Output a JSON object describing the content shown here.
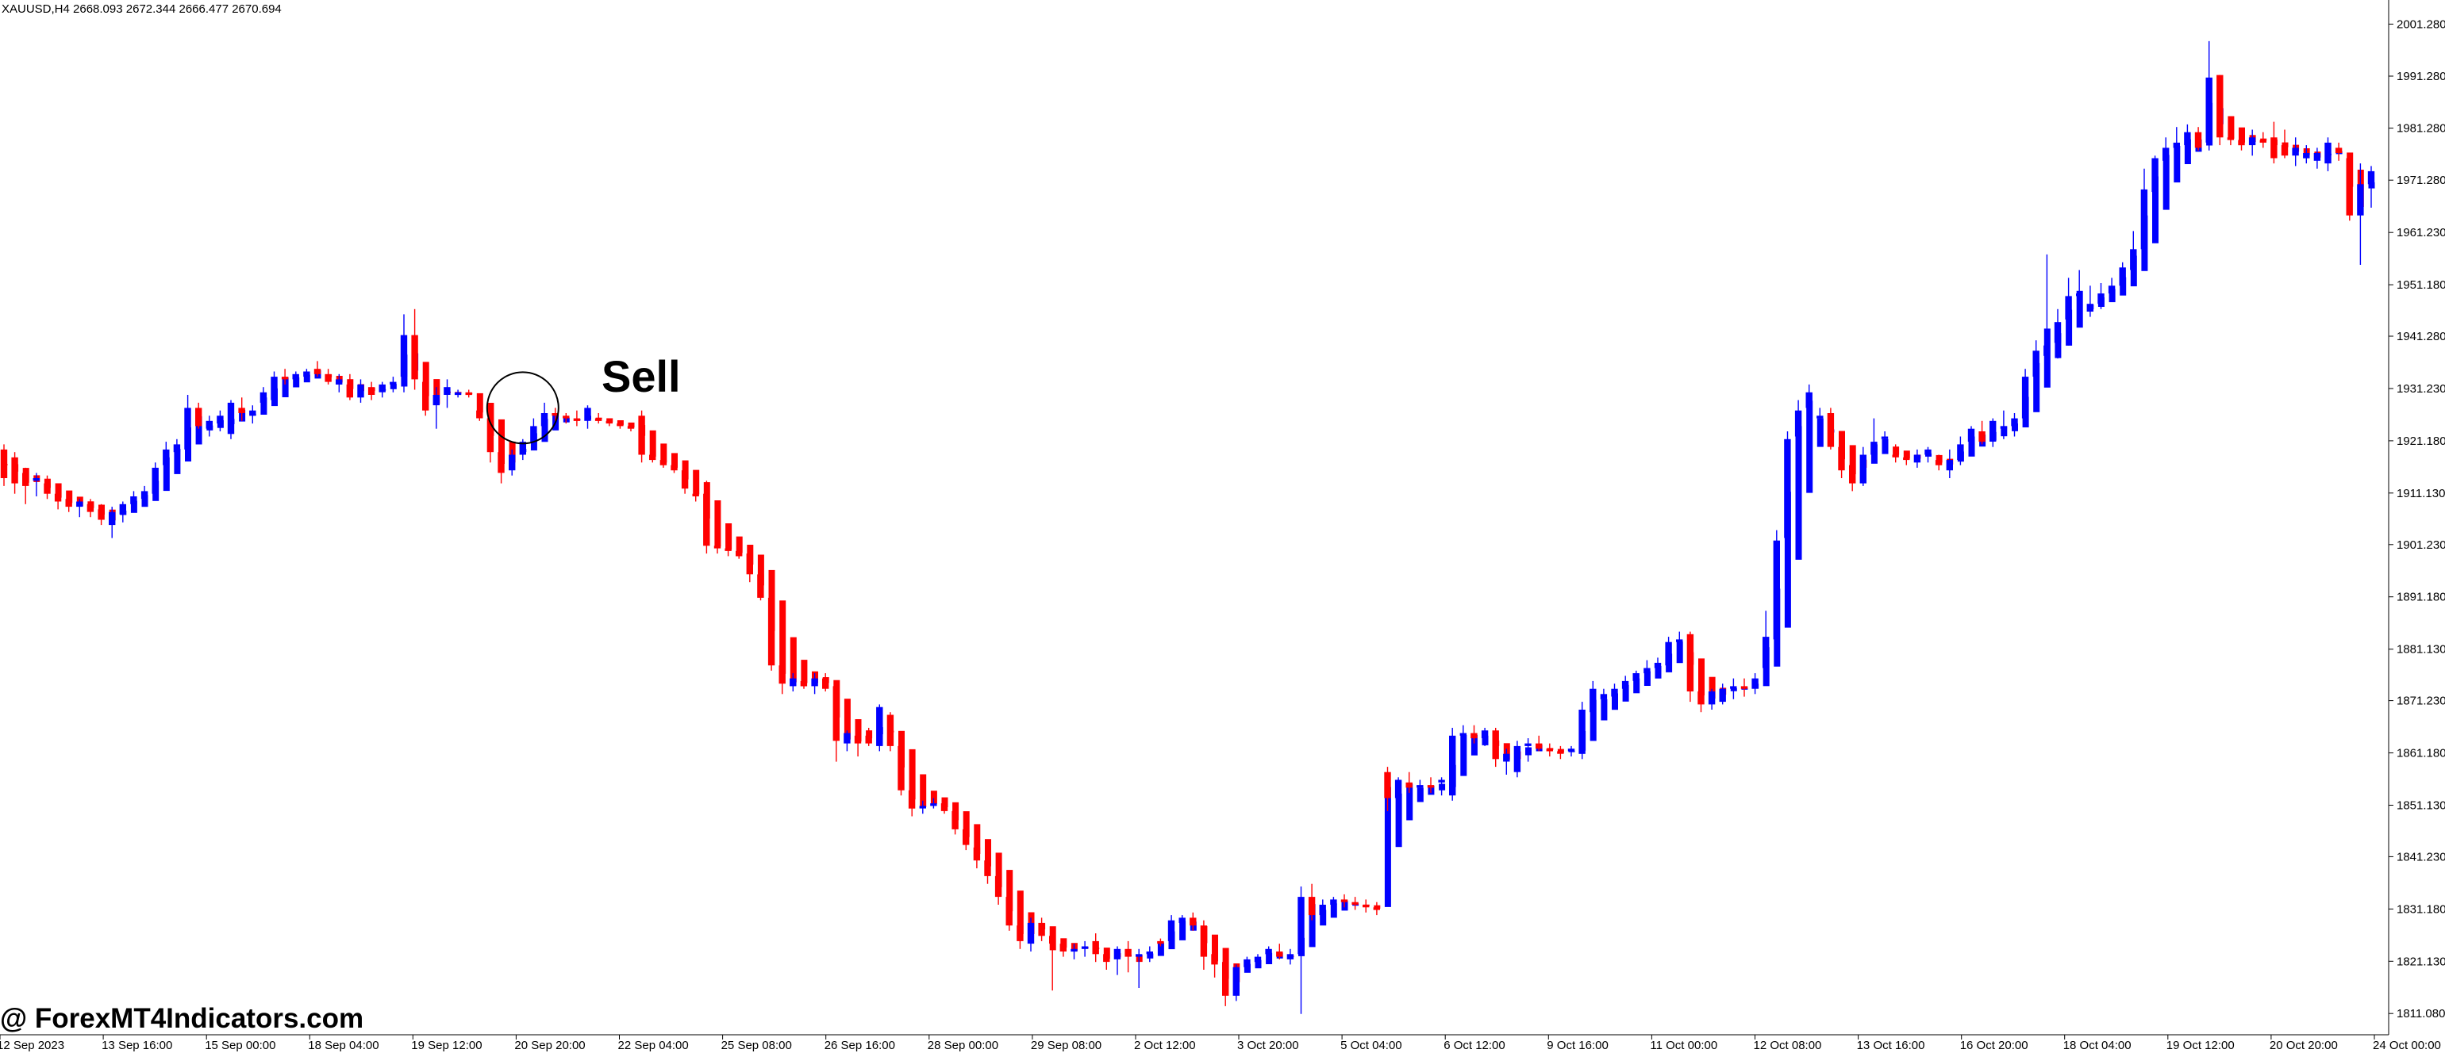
{
  "header": {
    "symbol_line": "XAUUSD,H4  2668.093 2672.344 2666.477 2670.694"
  },
  "watermark": {
    "text": "@ ForexMT4Indicators.com"
  },
  "colors": {
    "bull": "#0000ff",
    "bear": "#ff0000",
    "axis": "#000000",
    "background": "#ffffff"
  },
  "chart_data": {
    "type": "candlestick",
    "x_ticks": [
      "12 Sep 2023",
      "13 Sep 16:00",
      "15 Sep 00:00",
      "18 Sep 04:00",
      "19 Sep 12:00",
      "20 Sep 20:00",
      "22 Sep 04:00",
      "25 Sep 08:00",
      "26 Sep 16:00",
      "28 Sep 00:00",
      "29 Sep 08:00",
      "2 Oct 12:00",
      "3 Oct 20:00",
      "5 Oct 04:00",
      "6 Oct 12:00",
      "9 Oct 16:00",
      "11 Oct 00:00",
      "12 Oct 08:00",
      "13 Oct 16:00",
      "16 Oct 20:00",
      "18 Oct 04:00",
      "19 Oct 12:00",
      "20 Oct 20:00",
      "24 Oct 00:00"
    ],
    "y_ticks": [
      "2001.280",
      "1991.280",
      "1981.280",
      "1971.280",
      "1961.230",
      "1951.180",
      "1941.280",
      "1931.230",
      "1921.180",
      "1911.130",
      "1901.230",
      "1891.180",
      "1881.130",
      "1871.230",
      "1861.180",
      "1851.130",
      "1841.230",
      "1831.180",
      "1821.130",
      "1811.080"
    ],
    "ylim": [
      1807,
      2005
    ],
    "annotations": [
      {
        "text": "Sell",
        "near_bar": 48
      }
    ],
    "indicator": {
      "type": "heiken-ashi-bars",
      "colors": [
        "bull",
        "bear"
      ]
    },
    "candles": [
      [
        1919.5,
        1920.5,
        1912.5,
        1914.0
      ],
      [
        1918.0,
        1919.0,
        1911.0,
        1913.0
      ],
      [
        1915.0,
        1916.0,
        1909.0,
        1912.5
      ],
      [
        1913.5,
        1915.0,
        1910.5,
        1914.0
      ],
      [
        1913.0,
        1914.5,
        1910.0,
        1911.0
      ],
      [
        1911.0,
        1912.5,
        1908.0,
        1909.5
      ],
      [
        1910.0,
        1911.0,
        1907.5,
        1908.5
      ],
      [
        1908.5,
        1910.0,
        1906.5,
        1909.5
      ],
      [
        1909.0,
        1910.0,
        1906.5,
        1907.5
      ],
      [
        1908.0,
        1909.0,
        1905.0,
        1906.0
      ],
      [
        1905.0,
        1908.5,
        1902.5,
        1907.5
      ],
      [
        1907.0,
        1909.5,
        1905.5,
        1909.0
      ],
      [
        1909.0,
        1911.5,
        1907.5,
        1910.5
      ],
      [
        1910.0,
        1912.5,
        1909.0,
        1911.5
      ],
      [
        1911.0,
        1917.0,
        1910.0,
        1916.0
      ],
      [
        1916.5,
        1921.0,
        1915.0,
        1919.5
      ],
      [
        1919.0,
        1921.5,
        1917.5,
        1920.5
      ],
      [
        1919.5,
        1930.0,
        1918.0,
        1927.5
      ],
      [
        1927.5,
        1928.5,
        1923.5,
        1924.0
      ],
      [
        1923.5,
        1926.0,
        1922.0,
        1925.0
      ],
      [
        1924.5,
        1927.0,
        1923.0,
        1926.0
      ],
      [
        1922.5,
        1929.0,
        1921.5,
        1928.5
      ],
      [
        1927.5,
        1929.5,
        1925.0,
        1926.5
      ],
      [
        1926.0,
        1928.0,
        1924.5,
        1927.0
      ],
      [
        1928.5,
        1931.5,
        1927.5,
        1930.5
      ],
      [
        1929.0,
        1934.5,
        1928.0,
        1933.5
      ],
      [
        1933.5,
        1935.0,
        1932.0,
        1933.0
      ],
      [
        1933.0,
        1934.5,
        1932.0,
        1934.0
      ],
      [
        1933.5,
        1935.0,
        1932.5,
        1934.5
      ],
      [
        1935.0,
        1936.5,
        1933.5,
        1934.0
      ],
      [
        1934.0,
        1935.0,
        1932.0,
        1932.5
      ],
      [
        1932.0,
        1934.0,
        1930.5,
        1933.0
      ],
      [
        1932.0,
        1934.0,
        1929.0,
        1929.5
      ],
      [
        1929.5,
        1933.0,
        1928.5,
        1932.0
      ],
      [
        1931.5,
        1932.5,
        1929.0,
        1930.0
      ],
      [
        1930.5,
        1932.5,
        1929.5,
        1932.0
      ],
      [
        1932.0,
        1933.5,
        1930.5,
        1932.5
      ],
      [
        1933.5,
        1945.5,
        1930.5,
        1941.5
      ],
      [
        1941.5,
        1946.5,
        1931.0,
        1933.0
      ],
      [
        1932.5,
        1933.5,
        1926.0,
        1927.0
      ],
      [
        1928.0,
        1931.5,
        1923.5,
        1930.0
      ],
      [
        1930.0,
        1933.0,
        1927.5,
        1931.5
      ],
      [
        1930.0,
        1931.0,
        1929.5,
        1930.5
      ],
      [
        1930.5,
        1931.0,
        1929.5,
        1930.0
      ],
      [
        1927.0,
        1929.0,
        1925.0,
        1925.5
      ],
      [
        1925.5,
        1927.0,
        1917.0,
        1919.0
      ],
      [
        1919.0,
        1920.0,
        1913.0,
        1915.0
      ],
      [
        1915.5,
        1919.5,
        1914.5,
        1918.5
      ],
      [
        1918.5,
        1921.5,
        1917.5,
        1921.0
      ],
      [
        1921.0,
        1925.5,
        1920.0,
        1924.0
      ],
      [
        1924.0,
        1928.5,
        1922.5,
        1926.5
      ],
      [
        1926.5,
        1927.5,
        1925.0,
        1926.0
      ],
      [
        1926.0,
        1926.5,
        1924.5,
        1925.5
      ],
      [
        1925.5,
        1927.0,
        1924.0,
        1925.0
      ],
      [
        1925.0,
        1928.0,
        1923.5,
        1927.5
      ],
      [
        1925.5,
        1926.5,
        1924.5,
        1925.0
      ],
      [
        1925.0,
        1925.5,
        1924.0,
        1924.5
      ],
      [
        1924.5,
        1925.0,
        1923.5,
        1924.0
      ],
      [
        1924.0,
        1924.5,
        1923.0,
        1923.5
      ],
      [
        1926.0,
        1927.0,
        1917.0,
        1918.5
      ],
      [
        1918.5,
        1919.5,
        1917.0,
        1917.5
      ],
      [
        1917.5,
        1918.0,
        1916.0,
        1916.5
      ],
      [
        1916.5,
        1917.0,
        1915.0,
        1915.5
      ],
      [
        1915.5,
        1916.5,
        1911.0,
        1912.0
      ],
      [
        1911.0,
        1912.5,
        1909.5,
        1910.5
      ],
      [
        1911.0,
        1913.5,
        1899.5,
        1901.0
      ],
      [
        1901.0,
        1902.5,
        1899.5,
        1900.5
      ],
      [
        1900.5,
        1901.5,
        1899.0,
        1900.0
      ],
      [
        1900.0,
        1901.0,
        1898.5,
        1899.0
      ],
      [
        1899.5,
        1900.5,
        1894.0,
        1895.5
      ],
      [
        1895.5,
        1896.5,
        1890.5,
        1891.0
      ],
      [
        1891.0,
        1892.5,
        1877.0,
        1878.0
      ],
      [
        1878.0,
        1880.5,
        1872.5,
        1874.5
      ],
      [
        1874.0,
        1876.5,
        1873.0,
        1875.5
      ],
      [
        1875.0,
        1876.0,
        1873.5,
        1874.0
      ],
      [
        1874.0,
        1876.5,
        1872.5,
        1875.5
      ],
      [
        1875.5,
        1876.5,
        1873.0,
        1873.5
      ],
      [
        1874.0,
        1875.0,
        1859.5,
        1863.5
      ],
      [
        1863.0,
        1865.5,
        1861.5,
        1865.0
      ],
      [
        1864.5,
        1865.5,
        1860.5,
        1863.0
      ],
      [
        1864.5,
        1866.0,
        1862.5,
        1863.0
      ],
      [
        1862.5,
        1870.5,
        1861.5,
        1870.0
      ],
      [
        1868.5,
        1869.0,
        1861.5,
        1862.5
      ],
      [
        1862.5,
        1864.0,
        1853.0,
        1854.0
      ],
      [
        1854.0,
        1855.5,
        1849.0,
        1850.5
      ],
      [
        1850.5,
        1852.0,
        1849.5,
        1851.0
      ],
      [
        1851.0,
        1852.5,
        1850.5,
        1851.5
      ],
      [
        1851.5,
        1852.0,
        1849.5,
        1850.0
      ],
      [
        1850.0,
        1851.0,
        1845.5,
        1846.5
      ],
      [
        1846.5,
        1847.5,
        1842.5,
        1843.5
      ],
      [
        1843.0,
        1844.5,
        1839.0,
        1840.5
      ],
      [
        1840.5,
        1843.5,
        1836.0,
        1837.5
      ],
      [
        1837.5,
        1838.5,
        1832.0,
        1833.5
      ],
      [
        1833.5,
        1834.5,
        1827.0,
        1828.0
      ],
      [
        1828.0,
        1829.0,
        1823.5,
        1825.0
      ],
      [
        1824.5,
        1829.5,
        1823.0,
        1828.5
      ],
      [
        1828.5,
        1829.5,
        1825.0,
        1826.0
      ],
      [
        1826.0,
        1827.0,
        1815.5,
        1824.5
      ],
      [
        1824.5,
        1825.5,
        1822.0,
        1823.0
      ],
      [
        1823.0,
        1824.5,
        1821.5,
        1823.5
      ],
      [
        1823.5,
        1825.0,
        1822.0,
        1824.0
      ],
      [
        1825.0,
        1826.5,
        1821.0,
        1822.5
      ],
      [
        1822.5,
        1823.5,
        1819.5,
        1821.0
      ],
      [
        1821.5,
        1824.0,
        1818.5,
        1823.5
      ],
      [
        1823.5,
        1825.0,
        1819.0,
        1822.0
      ],
      [
        1822.0,
        1823.5,
        1816.0,
        1822.5
      ],
      [
        1822.5,
        1824.0,
        1821.0,
        1823.0
      ],
      [
        1825.0,
        1825.5,
        1824.0,
        1824.5
      ],
      [
        1825.0,
        1830.0,
        1823.5,
        1829.0
      ],
      [
        1828.5,
        1830.0,
        1827.5,
        1829.5
      ],
      [
        1829.5,
        1830.5,
        1827.0,
        1828.0
      ],
      [
        1828.0,
        1829.0,
        1819.5,
        1822.0
      ],
      [
        1822.5,
        1823.5,
        1818.0,
        1820.5
      ],
      [
        1821.0,
        1823.0,
        1812.5,
        1814.5
      ],
      [
        1814.5,
        1820.5,
        1813.5,
        1820.0
      ],
      [
        1820.0,
        1822.0,
        1819.0,
        1821.5
      ],
      [
        1821.0,
        1822.5,
        1820.0,
        1822.0
      ],
      [
        1822.5,
        1824.0,
        1821.0,
        1823.5
      ],
      [
        1823.0,
        1824.5,
        1821.5,
        1822.0
      ],
      [
        1821.5,
        1823.5,
        1820.5,
        1822.5
      ],
      [
        1822.5,
        1835.5,
        1811.0,
        1833.5
      ],
      [
        1833.5,
        1836.0,
        1829.0,
        1830.0
      ],
      [
        1830.0,
        1833.0,
        1829.0,
        1832.0
      ],
      [
        1832.0,
        1833.5,
        1830.5,
        1833.0
      ],
      [
        1833.0,
        1834.0,
        1831.5,
        1832.5
      ],
      [
        1832.5,
        1833.5,
        1831.0,
        1832.0
      ],
      [
        1832.0,
        1833.0,
        1830.5,
        1831.5
      ],
      [
        1831.5,
        1832.5,
        1830.0,
        1831.0
      ],
      [
        1857.5,
        1858.5,
        1850.0,
        1852.5
      ],
      [
        1852.5,
        1856.5,
        1848.5,
        1856.0
      ],
      [
        1855.5,
        1857.5,
        1853.5,
        1854.5
      ],
      [
        1854.5,
        1856.0,
        1852.5,
        1855.0
      ],
      [
        1855.0,
        1856.5,
        1853.5,
        1854.5
      ],
      [
        1855.5,
        1856.5,
        1853.0,
        1856.0
      ],
      [
        1853.0,
        1866.0,
        1852.0,
        1864.5
      ],
      [
        1864.5,
        1866.5,
        1862.5,
        1865.0
      ],
      [
        1865.0,
        1866.5,
        1863.0,
        1864.0
      ],
      [
        1864.0,
        1866.0,
        1862.5,
        1865.5
      ],
      [
        1865.5,
        1866.0,
        1858.5,
        1860.0
      ],
      [
        1859.5,
        1862.0,
        1857.0,
        1861.0
      ],
      [
        1857.5,
        1863.5,
        1856.5,
        1862.5
      ],
      [
        1862.5,
        1864.0,
        1859.5,
        1863.0
      ],
      [
        1863.0,
        1864.5,
        1861.5,
        1862.0
      ],
      [
        1862.0,
        1863.0,
        1860.5,
        1861.5
      ],
      [
        1861.5,
        1862.5,
        1860.0,
        1861.0
      ],
      [
        1861.5,
        1862.5,
        1860.5,
        1862.0
      ],
      [
        1861.0,
        1871.0,
        1860.0,
        1869.5
      ],
      [
        1869.0,
        1875.0,
        1868.0,
        1873.5
      ],
      [
        1871.5,
        1873.5,
        1868.5,
        1872.5
      ],
      [
        1872.0,
        1874.5,
        1870.5,
        1873.5
      ],
      [
        1873.5,
        1876.0,
        1872.5,
        1875.0
      ],
      [
        1875.0,
        1877.0,
        1873.5,
        1876.5
      ],
      [
        1876.5,
        1879.0,
        1874.5,
        1877.5
      ],
      [
        1877.5,
        1879.5,
        1876.0,
        1878.5
      ],
      [
        1878.0,
        1883.5,
        1877.0,
        1882.5
      ],
      [
        1882.5,
        1884.5,
        1880.5,
        1883.0
      ],
      [
        1884.0,
        1884.5,
        1871.0,
        1873.0
      ],
      [
        1873.0,
        1876.5,
        1869.0,
        1870.5
      ],
      [
        1870.5,
        1873.5,
        1869.5,
        1873.0
      ],
      [
        1871.0,
        1874.5,
        1870.5,
        1873.5
      ],
      [
        1873.5,
        1875.5,
        1871.5,
        1874.0
      ],
      [
        1874.0,
        1875.5,
        1872.0,
        1873.5
      ],
      [
        1873.5,
        1876.5,
        1872.5,
        1875.5
      ],
      [
        1877.5,
        1888.5,
        1876.5,
        1883.5
      ],
      [
        1883.0,
        1904.0,
        1882.0,
        1902.0
      ],
      [
        1902.5,
        1923.0,
        1898.5,
        1921.5
      ],
      [
        1922.0,
        1929.0,
        1918.0,
        1927.0
      ],
      [
        1927.5,
        1932.0,
        1925.5,
        1930.5
      ],
      [
        1925.5,
        1927.5,
        1923.0,
        1926.0
      ],
      [
        1926.5,
        1927.5,
        1919.5,
        1920.0
      ],
      [
        1920.0,
        1921.0,
        1914.0,
        1915.5
      ],
      [
        1916.5,
        1918.0,
        1911.5,
        1913.0
      ],
      [
        1913.0,
        1920.0,
        1912.5,
        1918.5
      ],
      [
        1918.5,
        1925.5,
        1917.0,
        1921.0
      ],
      [
        1921.5,
        1923.0,
        1919.5,
        1922.0
      ],
      [
        1918.5,
        1920.5,
        1917.0,
        1918.0
      ],
      [
        1918.0,
        1919.0,
        1916.5,
        1917.5
      ],
      [
        1917.0,
        1919.5,
        1916.0,
        1918.5
      ],
      [
        1918.5,
        1920.0,
        1917.0,
        1919.5
      ],
      [
        1917.5,
        1918.5,
        1915.5,
        1916.5
      ],
      [
        1915.5,
        1919.5,
        1914.0,
        1917.5
      ],
      [
        1917.5,
        1922.0,
        1916.5,
        1920.5
      ],
      [
        1921.0,
        1924.0,
        1919.5,
        1923.5
      ],
      [
        1923.0,
        1925.0,
        1920.5,
        1921.0
      ],
      [
        1921.0,
        1925.5,
        1920.0,
        1925.0
      ],
      [
        1923.5,
        1927.0,
        1921.5,
        1924.0
      ],
      [
        1924.0,
        1926.5,
        1922.0,
        1925.5
      ],
      [
        1925.5,
        1935.0,
        1924.5,
        1933.5
      ],
      [
        1933.5,
        1940.5,
        1932.0,
        1938.5
      ],
      [
        1937.5,
        1957.0,
        1937.0,
        1939.5
      ],
      [
        1940.0,
        1946.5,
        1937.0,
        1944.0
      ],
      [
        1944.5,
        1952.5,
        1939.5,
        1949.0
      ],
      [
        1949.0,
        1954.0,
        1947.5,
        1949.5
      ],
      [
        1946.0,
        1951.0,
        1945.0,
        1947.5
      ],
      [
        1947.5,
        1951.5,
        1946.5,
        1949.5
      ],
      [
        1949.5,
        1952.5,
        1948.5,
        1951.0
      ],
      [
        1951.0,
        1955.5,
        1949.5,
        1954.5
      ],
      [
        1954.0,
        1961.5,
        1953.5,
        1958.0
      ],
      [
        1958.0,
        1973.5,
        1957.0,
        1969.5
      ],
      [
        1969.0,
        1976.0,
        1967.5,
        1975.5
      ],
      [
        1975.0,
        1979.5,
        1972.5,
        1977.5
      ],
      [
        1977.5,
        1981.5,
        1974.0,
        1978.5
      ],
      [
        1978.0,
        1982.0,
        1976.0,
        1980.5
      ],
      [
        1980.5,
        1981.5,
        1977.0,
        1977.5
      ],
      [
        1978.5,
        1998.0,
        1977.0,
        1991.0
      ],
      [
        1991.5,
        1991.5,
        1978.0,
        1979.5
      ],
      [
        1979.5,
        1980.5,
        1978.0,
        1979.0
      ],
      [
        1979.0,
        1980.0,
        1977.0,
        1978.0
      ],
      [
        1978.0,
        1981.0,
        1976.0,
        1979.5
      ],
      [
        1979.0,
        1980.5,
        1977.5,
        1978.5
      ],
      [
        1979.5,
        1982.5,
        1974.5,
        1975.5
      ],
      [
        1978.0,
        1981.0,
        1975.5,
        1976.0
      ],
      [
        1976.0,
        1979.5,
        1974.0,
        1977.5
      ],
      [
        1975.5,
        1978.0,
        1974.5,
        1976.5
      ],
      [
        1975.0,
        1977.5,
        1973.5,
        1976.5
      ],
      [
        1974.5,
        1979.5,
        1973.0,
        1978.5
      ],
      [
        1977.5,
        1978.5,
        1975.0,
        1976.5
      ],
      [
        1975.5,
        1976.5,
        1963.5,
        1964.5
      ],
      [
        1964.5,
        1974.5,
        1955.0,
        1970.5
      ],
      [
        1970.5,
        1974.0,
        1966.0,
        1973.0
      ]
    ]
  }
}
